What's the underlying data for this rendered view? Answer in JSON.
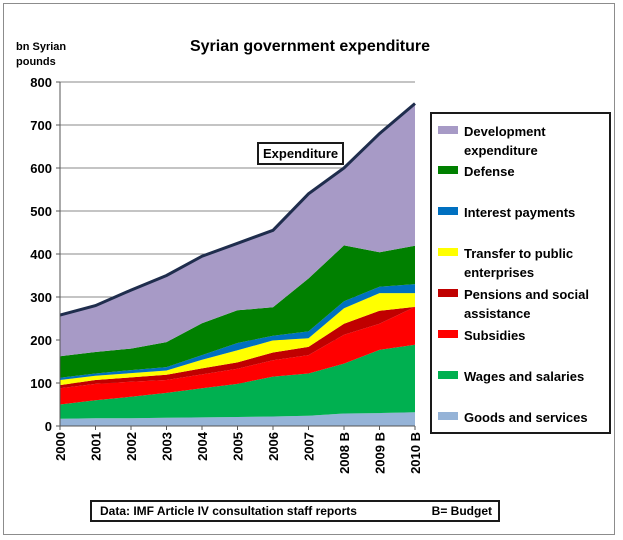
{
  "chart_data": {
    "type": "area",
    "stacked": true,
    "title": "Syrian government expenditure",
    "ylabel": "bn Syrian pounds",
    "xlabel": "",
    "ylim": [
      0,
      800
    ],
    "yticks": [
      0,
      100,
      200,
      300,
      400,
      500,
      600,
      700,
      800
    ],
    "grid": "horizontal",
    "legend_placement": "right",
    "categories": [
      "2000",
      "2001",
      "2002",
      "2003",
      "2004",
      "2005",
      "2006",
      "2007",
      "2008 B",
      "2009 B",
      "2010 B"
    ],
    "series": [
      {
        "name": "Goods and services",
        "color": "#95b3d7",
        "values": [
          17,
          18,
          18,
          19,
          20,
          21,
          22,
          24,
          29,
          30,
          32
        ]
      },
      {
        "name": "Wages and salaries",
        "color": "#00b050",
        "values": [
          33,
          42,
          50,
          58,
          68,
          77,
          93,
          98,
          116,
          147,
          157
        ]
      },
      {
        "name": "Subsidies",
        "color": "#ff0000",
        "values": [
          38,
          38,
          35,
          30,
          32,
          35,
          38,
          43,
          67,
          61,
          88
        ]
      },
      {
        "name": "Pensions and social assistance",
        "color": "#c00000",
        "values": [
          7,
          9,
          10,
          12,
          14,
          15,
          18,
          19,
          26,
          30,
          0
        ]
      },
      {
        "name": "Transfer to public enterprises",
        "color": "#ffff00",
        "values": [
          12,
          10,
          10,
          10,
          20,
          28,
          28,
          20,
          36,
          41,
          32
        ]
      },
      {
        "name": "Interest payments",
        "color": "#0070c0",
        "values": [
          5,
          5,
          7,
          8,
          11,
          17,
          11,
          16,
          16,
          15,
          21
        ]
      },
      {
        "name": "Defense",
        "color": "#008000",
        "values": [
          50,
          50,
          50,
          58,
          74,
          76,
          66,
          123,
          130,
          80,
          89
        ]
      },
      {
        "name": "Development expenditure",
        "color": "#a79ac6",
        "values": [
          96,
          108,
          136,
          155,
          156,
          156,
          179,
          197,
          180,
          276,
          331
        ]
      }
    ],
    "total_line": {
      "label": "Expenditure",
      "color": "#1f2d4d",
      "values": [
        258,
        280,
        316,
        350,
        395,
        425,
        455,
        540,
        600,
        680,
        750
      ]
    },
    "annotation": "Expenditure"
  },
  "legend_order": [
    {
      "label": "Development expenditure",
      "color": "#a79ac6"
    },
    {
      "label": "Defense",
      "color": "#008000"
    },
    {
      "label": "Interest payments",
      "color": "#0070c0"
    },
    {
      "label": "Transfer to public enterprises",
      "color": "#ffff00"
    },
    {
      "label": "Pensions and social assistance",
      "color": "#c00000"
    },
    {
      "label": "Subsidies",
      "color": "#ff0000"
    },
    {
      "label": "Wages and salaries",
      "color": "#00b050"
    },
    {
      "label": "Goods and services",
      "color": "#95b3d7"
    }
  ],
  "source": {
    "text": "Data: IMF Article IV consultation staff reports",
    "note": "B= Budget"
  }
}
